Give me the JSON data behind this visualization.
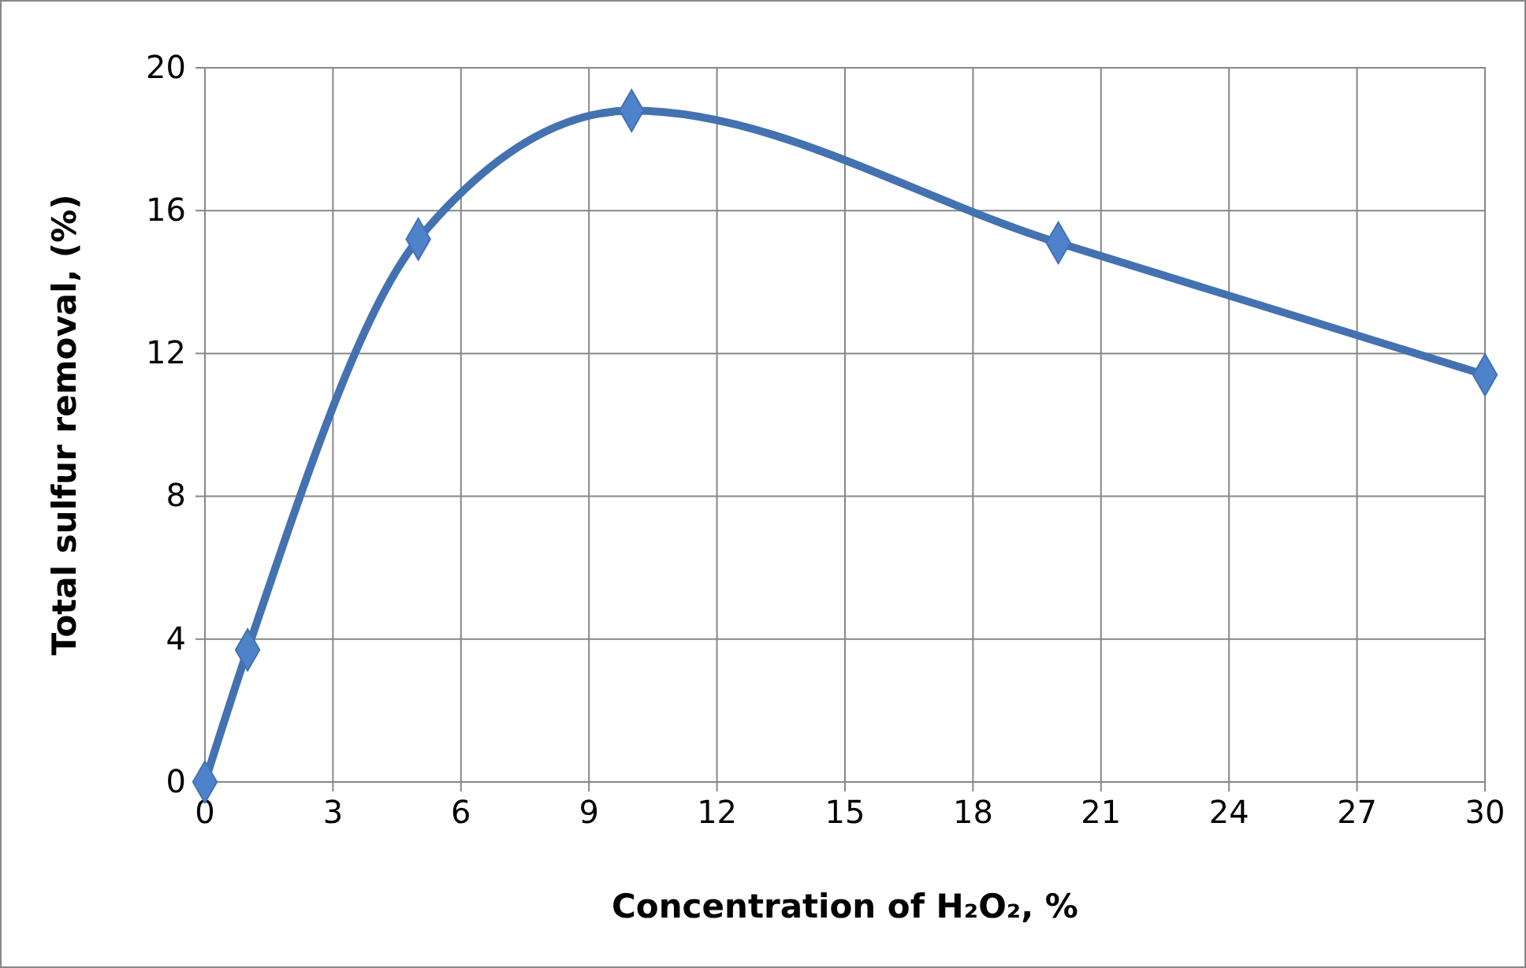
{
  "chart_data": {
    "type": "line",
    "xlabel": "Concentration of  H₂O₂, %",
    "ylabel": "Total sulfur removal, (%)",
    "x": [
      0,
      1,
      5,
      10,
      20,
      30
    ],
    "series": [
      {
        "color": "#4472b0",
        "values": [
          0,
          3.7,
          15.2,
          18.8,
          15.1,
          11.4
        ]
      }
    ],
    "xlim": [
      0,
      30
    ],
    "xticks": [
      0,
      3,
      6,
      9,
      12,
      15,
      18,
      21,
      24,
      27,
      30
    ],
    "ylim": [
      0,
      20
    ],
    "yticks": [
      0,
      4,
      8,
      12,
      16,
      20
    ],
    "grid": true,
    "marker": "diamond",
    "line_style": "solid"
  }
}
